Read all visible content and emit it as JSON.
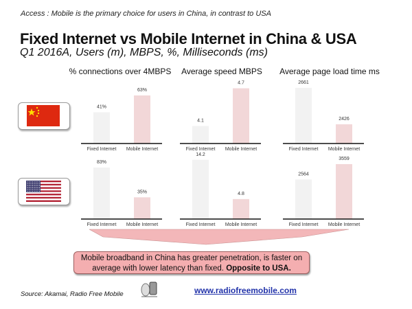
{
  "header": {
    "access": "Access : Mobile is the primary choice for users in China, in contrast to USA",
    "title": "Fixed Internet vs Mobile Internet in China & USA",
    "subtitle": "Q1 2016A, Users (m), MBPS, %, Milliseconds (ms)"
  },
  "countries": [
    "China",
    "USA"
  ],
  "colors": {
    "fixed": "#f2f2f2",
    "mobile": "#f2d7d8",
    "callout": "#f4aeb0",
    "link": "#2233aa"
  },
  "chart_data": [
    {
      "type": "bar",
      "title": "% connections over 4MBPS",
      "country": "China",
      "categories": [
        "Fixed Internet",
        "Mobile Internet"
      ],
      "values": [
        41,
        63
      ],
      "labels": [
        "41%",
        "63%"
      ],
      "ylim": [
        0,
        76.5
      ]
    },
    {
      "type": "bar",
      "title": "Average speed MBPS",
      "country": "China",
      "categories": [
        "Fixed Internet",
        "Mobile Internet"
      ],
      "values": [
        4.1,
        4.7
      ],
      "labels": [
        "4.1",
        "4.7"
      ],
      "ylim": [
        3.82,
        4.75
      ]
    },
    {
      "type": "bar",
      "title": "Average page load time ms",
      "country": "China",
      "categories": [
        "Fixed Internet",
        "Mobile Internet"
      ],
      "values": [
        2661,
        2426
      ],
      "labels": [
        "2661",
        "2426"
      ],
      "ylim": [
        2302,
        2679
      ]
    },
    {
      "type": "bar",
      "title": "% connections over 4MBPS",
      "country": "USA",
      "categories": [
        "Fixed Internet",
        "Mobile Internet"
      ],
      "values": [
        83,
        35
      ],
      "labels": [
        "83%",
        "35%"
      ],
      "ylim": [
        0,
        94
      ]
    },
    {
      "type": "bar",
      "title": "Average speed MBPS",
      "country": "USA",
      "categories": [
        "Fixed Internet",
        "Mobile Internet"
      ],
      "values": [
        14.2,
        4.8
      ],
      "labels": [
        "14.2",
        "4.8"
      ],
      "ylim": [
        0,
        14
      ]
    },
    {
      "type": "bar",
      "title": "Average page load time ms",
      "country": "USA",
      "categories": [
        "Fixed Internet",
        "Mobile Internet"
      ],
      "values": [
        2564,
        3559
      ],
      "labels": [
        "2564",
        "3559"
      ],
      "ylim": [
        0,
        3780
      ]
    }
  ],
  "panel_titles": [
    "% connections over 4MBPS",
    "Average speed MBPS",
    "Average page load time ms"
  ],
  "callout": {
    "text": "Mobile broadband in China has greater penetration, is faster on average with lower latency than fixed.",
    "bold": "Opposite to USA."
  },
  "footer": {
    "source": "Source:  Akamai, Radio Free Mobile",
    "url": "www.radiofreemobile.com"
  }
}
